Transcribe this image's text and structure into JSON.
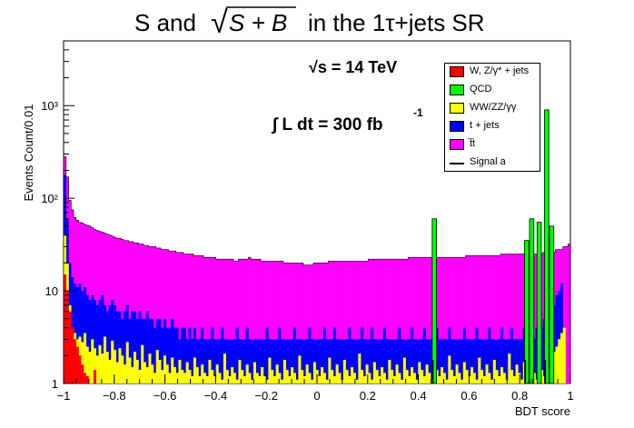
{
  "chart_data": {
    "type": "bar",
    "title_parts": [
      "S and",
      "√",
      "S + B",
      "in the 1τ+jets SR"
    ],
    "xlabel": "BDT score",
    "ylabel": "Events Count/0.01",
    "xlim": [
      -1,
      1
    ],
    "ylim": [
      1,
      5000
    ],
    "log_y": true,
    "stacked": true,
    "x_ticks": [
      "−1",
      "−0.8",
      "−0.6",
      "−0.4",
      "−0.2",
      "0",
      "0.2",
      "0.4",
      "0.6",
      "0.8",
      "1"
    ],
    "y_ticks": [
      "1",
      "10",
      "10²",
      "10³"
    ],
    "annotations": {
      "energy": "√s = 14 TeV",
      "lumi_prefix": "∫ L dt = 300 fb",
      "lumi_exp": "-1"
    },
    "legend_position": "top-right",
    "series_meta": [
      {
        "name": "W, Z/γ* + jets",
        "color": "#ff0000"
      },
      {
        "name": "QCD",
        "color": "#00ff00"
      },
      {
        "name": "WW/ZZ/γγ",
        "color": "#ffff00"
      },
      {
        "name": "t + jets",
        "color": "#0000ff"
      },
      {
        "name": "t̅t",
        "color": "#ff00ff"
      },
      {
        "name": "Signal a",
        "color": "#000000"
      }
    ],
    "totals": [
      280,
      170,
      95,
      75,
      62,
      58,
      55,
      54,
      52,
      51,
      50,
      48,
      46,
      45,
      44,
      43,
      42,
      41,
      40,
      39,
      38,
      37,
      37,
      36,
      35,
      35,
      34,
      34,
      33,
      33,
      32,
      32,
      31,
      31,
      30,
      30,
      30,
      29,
      29,
      28,
      28,
      28,
      27,
      27,
      27,
      26,
      26,
      26,
      25,
      25,
      25,
      25,
      24,
      24,
      24,
      24,
      23,
      23,
      23,
      23,
      23,
      22,
      22,
      22,
      22,
      22,
      22,
      22,
      21,
      21,
      22,
      22,
      22,
      22,
      23,
      22,
      22,
      22,
      22,
      21,
      21,
      21,
      21,
      21,
      21,
      21,
      21,
      21,
      20,
      20,
      20,
      20,
      20,
      20,
      20,
      20,
      19,
      19,
      19,
      19,
      20,
      20,
      20,
      20,
      20,
      20,
      21,
      21,
      21,
      21,
      21,
      21,
      21,
      21,
      21,
      21,
      21,
      21,
      21,
      21,
      21,
      21,
      22,
      22,
      22,
      22,
      22,
      22,
      22,
      22,
      22,
      22,
      22,
      22,
      22,
      22,
      22,
      22,
      23,
      23,
      23,
      23,
      23,
      23,
      23,
      23,
      23,
      23,
      23,
      23,
      23,
      23,
      23,
      23,
      23,
      23,
      23,
      23,
      23,
      23,
      23,
      24,
      24,
      24,
      24,
      24,
      24,
      24,
      24,
      24,
      24,
      24,
      24,
      24,
      24,
      25,
      25,
      25,
      25,
      25,
      25,
      25,
      25,
      25,
      25,
      25,
      25,
      25,
      25,
      25,
      25,
      25,
      26,
      26,
      26,
      26,
      26,
      28,
      28,
      28,
      30,
      30,
      32
    ],
    "tjets_top": [
      180,
      60,
      20,
      14,
      12,
      11,
      12,
      10,
      11,
      9,
      8,
      9,
      8,
      7,
      8,
      9,
      7,
      6,
      7,
      8,
      7,
      6,
      6,
      5,
      6,
      7,
      5,
      6,
      6,
      5,
      6,
      5,
      5,
      6,
      5,
      5,
      4,
      5,
      5,
      4,
      5,
      4,
      4,
      5,
      4,
      4,
      3,
      4,
      4,
      3,
      4,
      3,
      4,
      3,
      3,
      4,
      3,
      3,
      3,
      4,
      3,
      3,
      3,
      4,
      3,
      3,
      3,
      3,
      3,
      4,
      3,
      3,
      3,
      4,
      3,
      3,
      3,
      3,
      3,
      3,
      3,
      4,
      3,
      3,
      3,
      3,
      4,
      3,
      3,
      3,
      3,
      3,
      4,
      3,
      3,
      3,
      3,
      3,
      4,
      3,
      3,
      3,
      3,
      3,
      4,
      3,
      3,
      3,
      4,
      3,
      3,
      3,
      3,
      3,
      4,
      3,
      3,
      3,
      3,
      4,
      3,
      3,
      3,
      4,
      3,
      3,
      3,
      3,
      4,
      3,
      3,
      3,
      3,
      3,
      4,
      3,
      3,
      3,
      3,
      4,
      3,
      3,
      3,
      3,
      4,
      3,
      3,
      3,
      3,
      4,
      3,
      3,
      3,
      3,
      4,
      3,
      3,
      3,
      3,
      3,
      4,
      3,
      3,
      3,
      3,
      4,
      3,
      3,
      3,
      3,
      4,
      3,
      3,
      3,
      3,
      4,
      3,
      3,
      3,
      4,
      3,
      3,
      3,
      3,
      4,
      3,
      3,
      3,
      3,
      4,
      5,
      4,
      5,
      5,
      6,
      8,
      7,
      9,
      10,
      12
    ],
    "yellow_top": [
      40,
      20,
      7,
      4,
      3.5,
      3,
      3.2,
      2.8,
      3.5,
      2.5,
      2.2,
      3,
      2.4,
      2,
      2.6,
      2.1,
      3.2,
      2.2,
      1.8,
      2.9,
      2.3,
      1.7,
      2.4,
      2,
      1.6,
      2.8,
      1.9,
      1.5,
      2.2,
      1.8,
      1.4,
      2.6,
      1.7,
      1.5,
      2.1,
      1.6,
      1.3,
      2.3,
      1.8,
      1.4,
      2,
      1.6,
      1.3,
      1.9,
      1.5,
      1.3,
      1.8,
      1.4,
      1.3,
      1.7,
      1.4,
      1.2,
      1.9,
      1.5,
      1.2,
      1.6,
      1.3,
      1.2,
      1.8,
      1.4,
      1.2,
      1.6,
      1.3,
      1.1,
      2.1,
      1.4,
      1.2,
      1.5,
      1.3,
      1.1,
      1.8,
      1.4,
      1.2,
      1.6,
      1.3,
      1.1,
      1.7,
      1.3,
      1.2,
      1.5,
      1.2,
      1.1,
      1.9,
      1.4,
      1.2,
      1.6,
      1.3,
      1.1,
      1.8,
      1.4,
      1.2,
      1.5,
      1.3,
      1.1,
      2,
      1.4,
      1.2,
      1.6,
      1.3,
      1.1,
      1.7,
      1.4,
      1.2,
      1.5,
      1.3,
      1.1,
      1.9,
      1.4,
      1.2,
      1.6,
      1.3,
      1.1,
      1.8,
      1.4,
      1.2,
      1.5,
      1.3,
      1.1,
      2.1,
      1.4,
      1.2,
      1.6,
      1.3,
      1.1,
      1.7,
      1.4,
      1.2,
      1.5,
      1.3,
      1.1,
      1.8,
      1.4,
      1.2,
      1.6,
      1.3,
      1.1,
      1.9,
      1.4,
      1.2,
      1.5,
      1.3,
      1.1,
      1.7,
      1.4,
      1.2,
      1.6,
      1.3,
      1.1,
      1.8,
      1.4,
      1.2,
      1.5,
      1.3,
      1.1,
      2,
      1.4,
      1.2,
      1.6,
      1.3,
      1.1,
      1.7,
      1.4,
      1.2,
      1.5,
      1.3,
      1.1,
      1.9,
      1.4,
      1.2,
      1.6,
      1.3,
      1.1,
      1.8,
      1.4,
      1.2,
      1.5,
      1.3,
      1.1,
      2.1,
      1.4,
      1.2,
      1.6,
      1.3,
      1.1,
      1.7,
      1.4,
      1.2,
      1.5,
      1.3,
      1.1,
      1.8,
      1.4,
      1.2,
      2,
      1.6,
      1.8,
      2.2,
      2.5,
      3,
      3.5,
      4
    ],
    "red_top": [
      15,
      10,
      6,
      4,
      3,
      2.5,
      2,
      1.6,
      1.3,
      1.2,
      1,
      1,
      1.4,
      1,
      1,
      1,
      1,
      1,
      1,
      1,
      1,
      1,
      1,
      1,
      1,
      1,
      1,
      1,
      1,
      1,
      1,
      1,
      1,
      1,
      1,
      1,
      1,
      1,
      1,
      1,
      1,
      1,
      1,
      1,
      1,
      1,
      1,
      1,
      1,
      1,
      1,
      1,
      1,
      1,
      1,
      1,
      1,
      1,
      1,
      1,
      1,
      1,
      1,
      1,
      1,
      1,
      1,
      1,
      1,
      1,
      1,
      1,
      1,
      1,
      1,
      1,
      1,
      1,
      1,
      1,
      1,
      1,
      1,
      1,
      1,
      1,
      1,
      1,
      1,
      1,
      1,
      1,
      1,
      1,
      1,
      1,
      1,
      1,
      1,
      1,
      1,
      1,
      1,
      1,
      1,
      1,
      1,
      1,
      1,
      1,
      1,
      1,
      1,
      1,
      1,
      1,
      1,
      1,
      1,
      1,
      1,
      1,
      1,
      1,
      1,
      1,
      1,
      1,
      1,
      1,
      1,
      1,
      1,
      1,
      1,
      1,
      1,
      1,
      1,
      1,
      1,
      1,
      1,
      1,
      1,
      1,
      1,
      1,
      1,
      1,
      1,
      1,
      1,
      1,
      1,
      1,
      1,
      1,
      1,
      1,
      1,
      1,
      1,
      1,
      1,
      1,
      1,
      1,
      1,
      1,
      1,
      1,
      1,
      1,
      1,
      1,
      1,
      1,
      1,
      1,
      1,
      1,
      1,
      1,
      1,
      1,
      1,
      1,
      1,
      1,
      1,
      1,
      1,
      1,
      1,
      1,
      1,
      1,
      1,
      1
    ],
    "qcd_spikes": [
      {
        "bin": 148,
        "value": 60
      },
      {
        "bin": 185,
        "value": 35
      },
      {
        "bin": 187,
        "value": 60
      },
      {
        "bin": 190,
        "value": 55
      },
      {
        "bin": 193,
        "value": 900
      },
      {
        "bin": 195,
        "value": 50
      }
    ],
    "signal_steps": [
      {
        "bin": 148,
        "value": 1
      },
      {
        "bin": 185,
        "value": 1
      },
      {
        "bin": 193,
        "value": 1
      }
    ]
  }
}
